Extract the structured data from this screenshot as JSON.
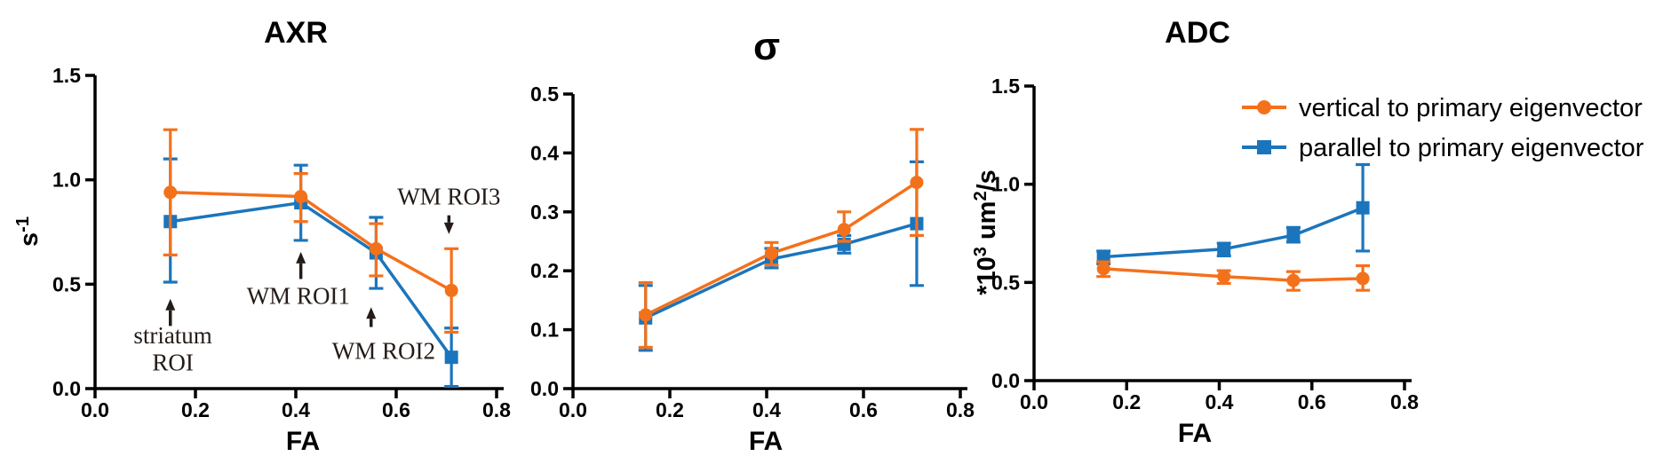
{
  "figure": {
    "background": "#FFFFFF"
  },
  "colors": {
    "vertical": "#F4711C",
    "parallel": "#1B75BC",
    "axis": "#000000",
    "text": "#000000",
    "annotation": "#241C18"
  },
  "legend": {
    "items": [
      {
        "key": "vertical",
        "marker": "circle",
        "label": "vertical to primary eigenvector"
      },
      {
        "key": "parallel",
        "marker": "square",
        "label": "parallel to primary eigenvector"
      }
    ]
  },
  "chart_data": [
    {
      "id": "axr",
      "type": "line",
      "title": "AXR",
      "xlabel": "FA",
      "ylabel_parts": [
        {
          "t": "s"
        },
        {
          "t": "-1",
          "sup": true
        }
      ],
      "xlim": [
        0,
        0.8
      ],
      "ylim": [
        0,
        1.5
      ],
      "xticks": [
        0,
        0.2,
        0.4,
        0.6,
        0.8
      ],
      "xticklabels": [
        "0.0",
        "0.2",
        "0.4",
        "0.6",
        "0.8"
      ],
      "yticks": [
        0,
        0.5,
        1.0,
        1.5
      ],
      "yticklabels": [
        "0.0",
        "0.5",
        "1.0",
        "1.5"
      ],
      "x": [
        0.15,
        0.41,
        0.56,
        0.71
      ],
      "series": [
        {
          "key": "vertical",
          "name": "vertical to primary eigenvector",
          "marker": "circle",
          "values": [
            0.94,
            0.92,
            0.67,
            0.47
          ],
          "err_lo": [
            0.3,
            0.12,
            0.13,
            0.2
          ],
          "err_hi": [
            0.3,
            0.11,
            0.12,
            0.2
          ]
        },
        {
          "key": "parallel",
          "name": "parallel to primary eigenvector",
          "marker": "square",
          "values": [
            0.8,
            0.89,
            0.65,
            0.15
          ],
          "err_lo": [
            0.29,
            0.18,
            0.17,
            0.14
          ],
          "err_hi": [
            0.3,
            0.18,
            0.17,
            0.14
          ]
        }
      ],
      "annotations": [
        {
          "id": "striatum-roi",
          "lines": [
            "striatum",
            "ROI"
          ],
          "text_x": 0.155,
          "text_y": [
            0.255,
            0.125
          ],
          "arrow_x": 0.15,
          "arrow_tail": 0.3,
          "arrow_tip": 0.43
        },
        {
          "id": "wm-roi1",
          "lines": [
            "WM ROI1"
          ],
          "text_x": 0.405,
          "text_y": [
            0.445
          ],
          "arrow_x": 0.41,
          "arrow_tail": 0.525,
          "arrow_tip": 0.655
        },
        {
          "id": "wm-roi2",
          "lines": [
            "WM ROI2"
          ],
          "text_x": 0.575,
          "text_y": [
            0.18
          ],
          "arrow_x": 0.55,
          "arrow_tail": 0.295,
          "arrow_tip": 0.39
        },
        {
          "id": "wm-roi3",
          "lines": [
            "WM ROI3"
          ],
          "text_x": 0.705,
          "text_y": [
            0.92
          ],
          "arrow_x": 0.705,
          "arrow_tail": 0.83,
          "arrow_tip": 0.74
        }
      ]
    },
    {
      "id": "sigma",
      "type": "line",
      "title": "σ",
      "xlabel": "FA",
      "ylabel_parts": [],
      "xlim": [
        0,
        0.8
      ],
      "ylim": [
        0,
        0.5
      ],
      "xticks": [
        0,
        0.2,
        0.4,
        0.6,
        0.8
      ],
      "xticklabels": [
        "0.0",
        "0.2",
        "0.4",
        "0.6",
        "0.8"
      ],
      "yticks": [
        0,
        0.1,
        0.2,
        0.3,
        0.4,
        0.5
      ],
      "yticklabels": [
        "0.0",
        "0.1",
        "0.2",
        "0.3",
        "0.4",
        "0.5"
      ],
      "x": [
        0.15,
        0.41,
        0.56,
        0.71
      ],
      "series": [
        {
          "key": "vertical",
          "name": "vertical to primary eigenvector",
          "marker": "circle",
          "values": [
            0.125,
            0.23,
            0.27,
            0.35
          ],
          "err_lo": [
            0.055,
            0.02,
            0.02,
            0.09
          ],
          "err_hi": [
            0.055,
            0.018,
            0.03,
            0.09
          ]
        },
        {
          "key": "parallel",
          "name": "parallel to primary eigenvector",
          "marker": "square",
          "values": [
            0.12,
            0.22,
            0.245,
            0.28
          ],
          "err_lo": [
            0.055,
            0.015,
            0.015,
            0.105
          ],
          "err_hi": [
            0.055,
            0.018,
            0.015,
            0.105
          ]
        }
      ],
      "annotations": []
    },
    {
      "id": "adc",
      "type": "line",
      "title": "ADC",
      "xlabel": "FA",
      "ylabel_parts": [
        {
          "t": "*10"
        },
        {
          "t": "3",
          "sup": true
        },
        {
          "t": " um"
        },
        {
          "t": "2",
          "sup": true
        },
        {
          "t": "/s"
        }
      ],
      "xlim": [
        0,
        0.8
      ],
      "ylim": [
        0,
        1.5
      ],
      "xticks": [
        0,
        0.2,
        0.4,
        0.6,
        0.8
      ],
      "xticklabels": [
        "0.0",
        "0.2",
        "0.4",
        "0.6",
        "0.8"
      ],
      "yticks": [
        0,
        0.5,
        1.0,
        1.5
      ],
      "yticklabels": [
        "0.0",
        "0.5",
        "1.0",
        "1.5"
      ],
      "x": [
        0.15,
        0.41,
        0.56,
        0.71
      ],
      "series": [
        {
          "key": "vertical",
          "name": "vertical to primary eigenvector",
          "marker": "circle",
          "values": [
            0.57,
            0.53,
            0.51,
            0.52
          ],
          "err_lo": [
            0.04,
            0.035,
            0.05,
            0.06
          ],
          "err_hi": [
            0.035,
            0.03,
            0.045,
            0.065
          ]
        },
        {
          "key": "parallel",
          "name": "parallel to primary eigenvector",
          "marker": "square",
          "values": [
            0.63,
            0.67,
            0.74,
            0.88
          ],
          "err_lo": [
            0.035,
            0.035,
            0.035,
            0.22
          ],
          "err_hi": [
            0.03,
            0.03,
            0.04,
            0.22
          ]
        }
      ],
      "annotations": [],
      "has_legend": true
    }
  ]
}
